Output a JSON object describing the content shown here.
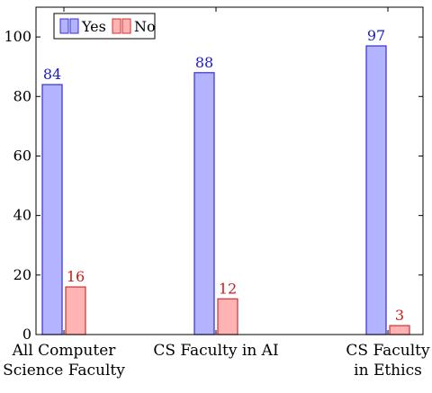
{
  "chart_data": {
    "type": "bar",
    "title": "",
    "xlabel": "",
    "ylabel": "",
    "ylim": [
      0,
      110
    ],
    "yticks": [
      0,
      20,
      40,
      60,
      80,
      100
    ],
    "categories": [
      [
        "All Computer",
        "Science Faculty"
      ],
      [
        "CS Faculty in AI"
      ],
      [
        "CS Faculty",
        "in Ethics"
      ]
    ],
    "series": [
      {
        "name": "Yes",
        "values": [
          84,
          88,
          97
        ],
        "fill": "#b3b3ff",
        "stroke": "#3333cc",
        "label_color": "#1a1acc"
      },
      {
        "name": "No",
        "values": [
          16,
          12,
          3
        ],
        "fill": "#ffb3b3",
        "stroke": "#cc3333",
        "label_color": "#cc1a1a"
      }
    ],
    "legend": {
      "position": "top-left"
    },
    "grid": false
  }
}
